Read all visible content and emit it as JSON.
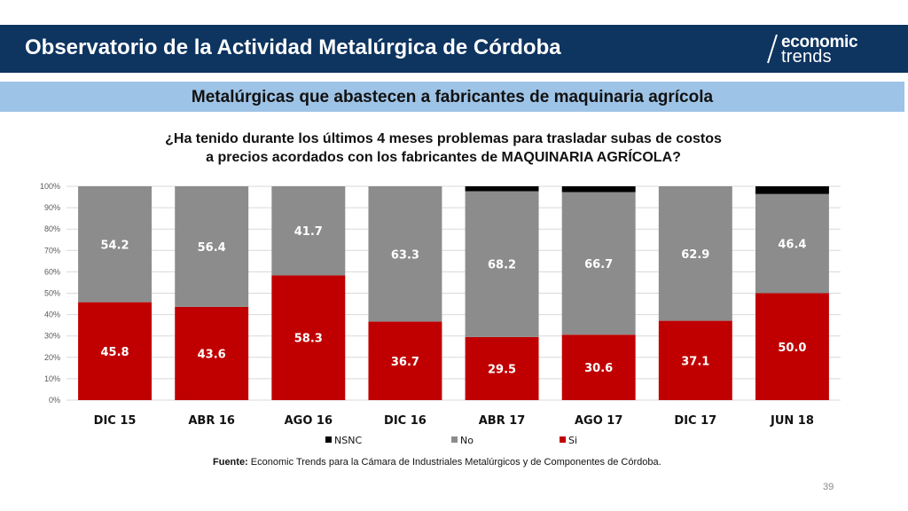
{
  "header": {
    "title": "Observatorio de la Actividad Metalúrgica de Córdoba",
    "logo_top": "economic",
    "logo_bottom": "trends"
  },
  "subtitle": "Metalúrgicas que abastecen a fabricantes de maquinaria agrícola",
  "question": {
    "line1": "¿Ha tenido durante los últimos 4 meses problemas para trasladar subas de costos",
    "line2": "a precios acordados con los fabricantes de MAQUINARIA AGRÍCOLA?"
  },
  "chart_data": {
    "type": "bar",
    "stacked": true,
    "categories": [
      "DIC 15",
      "ABR 16",
      "AGO 16",
      "DIC 16",
      "ABR 17",
      "AGO 17",
      "DIC 17",
      "JUN 18"
    ],
    "series": [
      {
        "name": "Si",
        "color": "#c00000",
        "values": [
          45.8,
          43.6,
          58.3,
          36.7,
          29.5,
          30.6,
          37.1,
          50.0
        ],
        "labels": [
          "45.8",
          "43.6",
          "58.3",
          "36.7",
          "29.5",
          "30.6",
          "37.1",
          "50.0"
        ]
      },
      {
        "name": "No",
        "color": "#8c8c8c",
        "values": [
          54.2,
          56.4,
          41.7,
          63.3,
          68.2,
          66.7,
          62.9,
          46.4
        ],
        "labels": [
          "54.2",
          "56.4",
          "41.7",
          "63.3",
          "68.2",
          "66.7",
          "62.9",
          "46.4"
        ]
      },
      {
        "name": "NSNC",
        "color": "#000000",
        "values": [
          0,
          0,
          0,
          0,
          2.3,
          2.7,
          0,
          3.6
        ],
        "labels": [
          "",
          "",
          "",
          "",
          "",
          "",
          "",
          ""
        ]
      }
    ],
    "legend_order": [
      "NSNC",
      "No",
      "Si"
    ],
    "legend_position": "bottom",
    "ylim": [
      0,
      100
    ],
    "yticks": [
      "0%",
      "10%",
      "20%",
      "30%",
      "40%",
      "50%",
      "60%",
      "70%",
      "80%",
      "90%",
      "100%"
    ],
    "grid": true
  },
  "source": {
    "label": "Fuente:",
    "text": " Economic Trends para la Cámara de Industriales Metalúrgicos y de Componentes de Córdoba."
  },
  "page_number": "39"
}
